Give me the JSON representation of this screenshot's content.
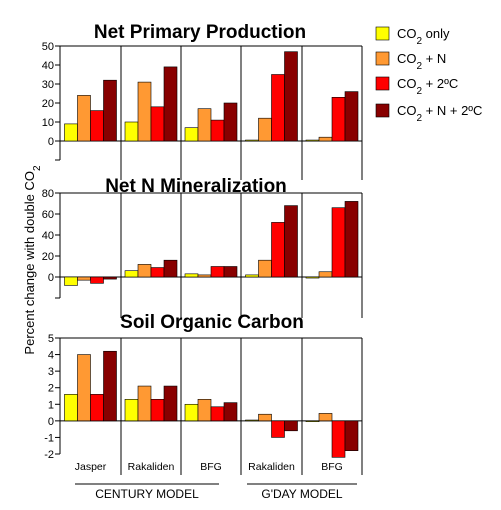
{
  "colors": {
    "co2_only": "#ffff00",
    "co2_n": "#ff9933",
    "co2_2c": "#ff0000",
    "co2_n_2c": "#880000"
  },
  "y_axis_label": "Percent change with double CO2",
  "categories": [
    "Jasper",
    "Rakaliden",
    "BFG",
    "Rakaliden",
    "BFG"
  ],
  "model_groups": [
    {
      "label": "CENTURY MODEL",
      "categories": [
        0,
        1,
        2
      ]
    },
    {
      "label": "G'DAY MODEL",
      "categories": [
        3,
        4
      ]
    }
  ],
  "legend": [
    {
      "label": "CO2 only",
      "color": "#ffff00"
    },
    {
      "label": "CO2 + N",
      "color": "#ff9933"
    },
    {
      "label": "CO2 + 2ºC",
      "color": "#ff0000"
    },
    {
      "label": "CO2 + N + 2ºC",
      "color": "#880000"
    }
  ],
  "chart_data": [
    {
      "type": "bar",
      "title": "Net Primary Production",
      "ylim": [
        -10,
        50
      ],
      "yticks": [
        0,
        10,
        20,
        30,
        40,
        50
      ],
      "series": [
        {
          "name": "CO2 only",
          "values": [
            9,
            10,
            7,
            0.5,
            0.5
          ]
        },
        {
          "name": "CO2 + N",
          "values": [
            24,
            31,
            17,
            12,
            2
          ]
        },
        {
          "name": "CO2 + 2ºC",
          "values": [
            16,
            18,
            11,
            35,
            23
          ]
        },
        {
          "name": "CO2 + N + 2ºC",
          "values": [
            32,
            39,
            20,
            47,
            26
          ]
        }
      ]
    },
    {
      "type": "bar",
      "title": "Net N Mineralization",
      "ylim": [
        -20,
        80
      ],
      "yticks": [
        0,
        20,
        40,
        60,
        80
      ],
      "series": [
        {
          "name": "CO2 only",
          "values": [
            -8,
            6,
            3,
            2,
            -1
          ]
        },
        {
          "name": "CO2 + N",
          "values": [
            -3,
            12,
            2,
            16,
            5
          ]
        },
        {
          "name": "CO2 + 2ºC",
          "values": [
            -6,
            9,
            10,
            52,
            66
          ]
        },
        {
          "name": "CO2 + N + 2ºC",
          "values": [
            -2,
            16,
            10,
            68,
            72
          ]
        }
      ]
    },
    {
      "type": "bar",
      "title": "Soil Organic Carbon",
      "ylim": [
        -2,
        5
      ],
      "yticks": [
        -2,
        -1,
        0,
        1,
        2,
        3,
        4,
        5
      ],
      "series": [
        {
          "name": "CO2 only",
          "values": [
            1.6,
            1.3,
            1.0,
            0.05,
            -0.05
          ]
        },
        {
          "name": "CO2 + N",
          "values": [
            4.0,
            2.1,
            1.3,
            0.4,
            0.45
          ]
        },
        {
          "name": "CO2 + 2ºC",
          "values": [
            1.6,
            1.3,
            0.85,
            -1.0,
            -2.2
          ]
        },
        {
          "name": "CO2 + N + 2ºC",
          "values": [
            4.2,
            2.1,
            1.1,
            -0.6,
            -1.8
          ]
        }
      ]
    }
  ]
}
